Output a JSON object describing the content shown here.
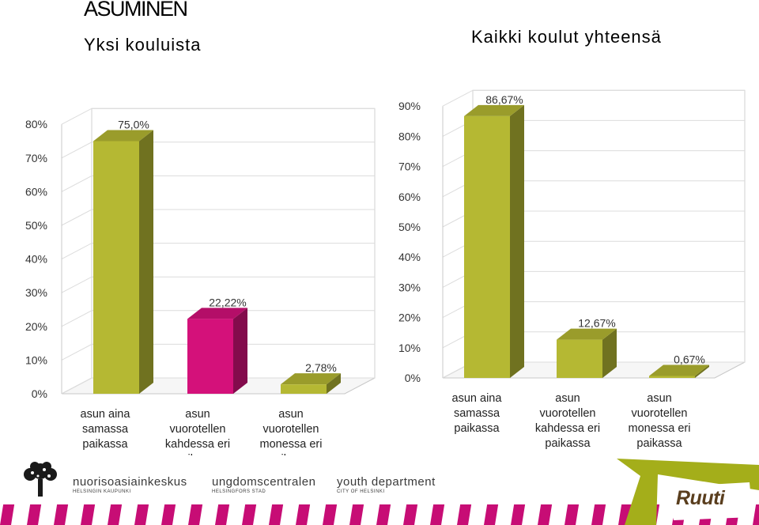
{
  "page": {
    "title": "ASUMINEN",
    "subtitle_left": "Yksi kouluista",
    "subtitle_right": "Kaikki koulut yhteensä"
  },
  "chart_data": [
    {
      "type": "bar",
      "subtitle": "Yksi kouluista",
      "categories": [
        [
          "asun aina",
          "samassa",
          "paikassa"
        ],
        [
          "asun",
          "vuorotellen",
          "kahdessa eri",
          "paikassa"
        ],
        [
          "asun",
          "vuorotellen",
          "monessa eri",
          "paikassa"
        ]
      ],
      "values": [
        75.0,
        22.22,
        2.78
      ],
      "data_labels": [
        "75,0%",
        "22,22%",
        "2,78%"
      ],
      "colors": [
        "#b5b833",
        "#d4117a",
        "#b5b833"
      ],
      "ylim": [
        0,
        80
      ],
      "yticks": [
        "0%",
        "10%",
        "20%",
        "30%",
        "40%",
        "50%",
        "60%",
        "70%",
        "80%"
      ],
      "grid": true
    },
    {
      "type": "bar",
      "subtitle": "Kaikki koulut yhteensä",
      "categories": [
        [
          "asun aina",
          "samassa",
          "paikassa"
        ],
        [
          "asun",
          "vuorotellen",
          "kahdessa eri",
          "paikassa"
        ],
        [
          "asun",
          "vuorotellen",
          "monessa eri",
          "paikassa"
        ]
      ],
      "values": [
        86.67,
        12.67,
        0.67
      ],
      "data_labels": [
        "86,67%",
        "12,67%",
        "0,67%"
      ],
      "colors": [
        "#b5b833",
        "#b5b833",
        "#b5b833"
      ],
      "ylim": [
        0,
        90
      ],
      "yticks": [
        "0%",
        "10%",
        "20%",
        "30%",
        "40%",
        "50%",
        "60%",
        "70%",
        "80%",
        "90%"
      ],
      "grid": true
    }
  ],
  "footer": {
    "brands": [
      {
        "name": "nuorisoasiainkeskus",
        "sub": "HELSINGIN KAUPUNKI"
      },
      {
        "name": "ungdomscentralen",
        "sub": "HELSINGFORS STAD"
      },
      {
        "name": "youth department",
        "sub": "CITY OF HELSINKI"
      }
    ],
    "logo_text": "Ruuti",
    "colors": {
      "magenta": "#c4006e",
      "olive": "#a4ae1a"
    }
  }
}
